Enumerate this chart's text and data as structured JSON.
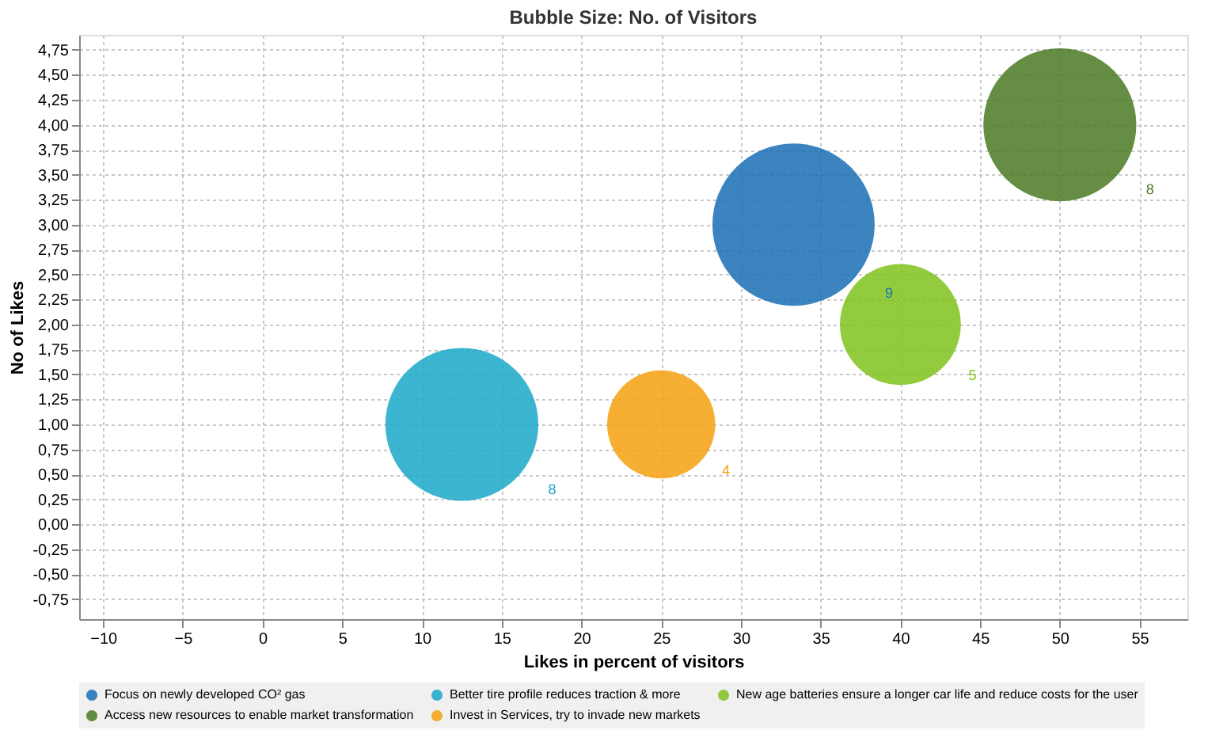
{
  "chart_data": {
    "type": "bubble",
    "title": "Bubble Size: No. of Visitors",
    "xlabel": "Likes in percent of visitors",
    "ylabel": "No of Likes",
    "series": [
      {
        "name": "Focus on newly developed CO² gas",
        "color": "#1a6fb5",
        "x": [
          33.3
        ],
        "values": [
          3.0
        ],
        "sizes": [
          9
        ],
        "value_labels": [
          "9"
        ]
      },
      {
        "name": "Better tire profile reduces traction & more",
        "color": "#1aa8c8",
        "x": [
          12.5
        ],
        "values": [
          1.0
        ],
        "sizes": [
          8
        ],
        "value_labels": [
          "8"
        ]
      },
      {
        "name": "New age batteries ensure a longer car life and reduce costs for the user",
        "color": "#7fc31c",
        "x": [
          40
        ],
        "values": [
          2.0
        ],
        "sizes": [
          5
        ],
        "value_labels": [
          "5"
        ]
      },
      {
        "name": "Access new resources to enable market transformation",
        "color": "#4a7a23",
        "x": [
          50
        ],
        "values": [
          4.0
        ],
        "sizes": [
          8
        ],
        "value_labels": [
          "8"
        ]
      },
      {
        "name": "Invest in Services, try to invade new markets",
        "color": "#f5a00f",
        "x": [
          25
        ],
        "values": [
          1.0
        ],
        "sizes": [
          4
        ],
        "value_labels": [
          "4"
        ]
      }
    ],
    "xlim": [
      -11.5,
      58
    ],
    "xticks": [
      -10,
      -5,
      0,
      5,
      10,
      15,
      20,
      25,
      30,
      35,
      40,
      45,
      50,
      55
    ],
    "ylim": [
      -0.95,
      4.9
    ],
    "yticks": [
      {
        "value": -0.75,
        "label": "-0,75"
      },
      {
        "value": -0.5,
        "label": "-0,50"
      },
      {
        "value": -0.25,
        "label": "-0,25"
      },
      {
        "value": 0,
        "label": "0,00"
      },
      {
        "value": 0.25,
        "label": "0,25"
      },
      {
        "value": 0.5,
        "label": "0,50"
      },
      {
        "value": 0.75,
        "label": "0,75"
      },
      {
        "value": 1,
        "label": "1,00"
      },
      {
        "value": 1.25,
        "label": "1,25"
      },
      {
        "value": 1.5,
        "label": "1,50"
      },
      {
        "value": 1.75,
        "label": "1,75"
      },
      {
        "value": 2,
        "label": "2,00"
      },
      {
        "value": 2.25,
        "label": "2,25"
      },
      {
        "value": 2.5,
        "label": "2,50"
      },
      {
        "value": 2.75,
        "label": "2,75"
      },
      {
        "value": 3,
        "label": "3,00"
      },
      {
        "value": 3.25,
        "label": "3,25"
      },
      {
        "value": 3.5,
        "label": "3,50"
      },
      {
        "value": 3.75,
        "label": "3,75"
      },
      {
        "value": 4,
        "label": "4,00"
      },
      {
        "value": 4.25,
        "label": "4,25"
      },
      {
        "value": 4.5,
        "label": "4,50"
      },
      {
        "value": 4.75,
        "label": "4,75"
      }
    ],
    "grid": true,
    "legend": "bottom"
  }
}
